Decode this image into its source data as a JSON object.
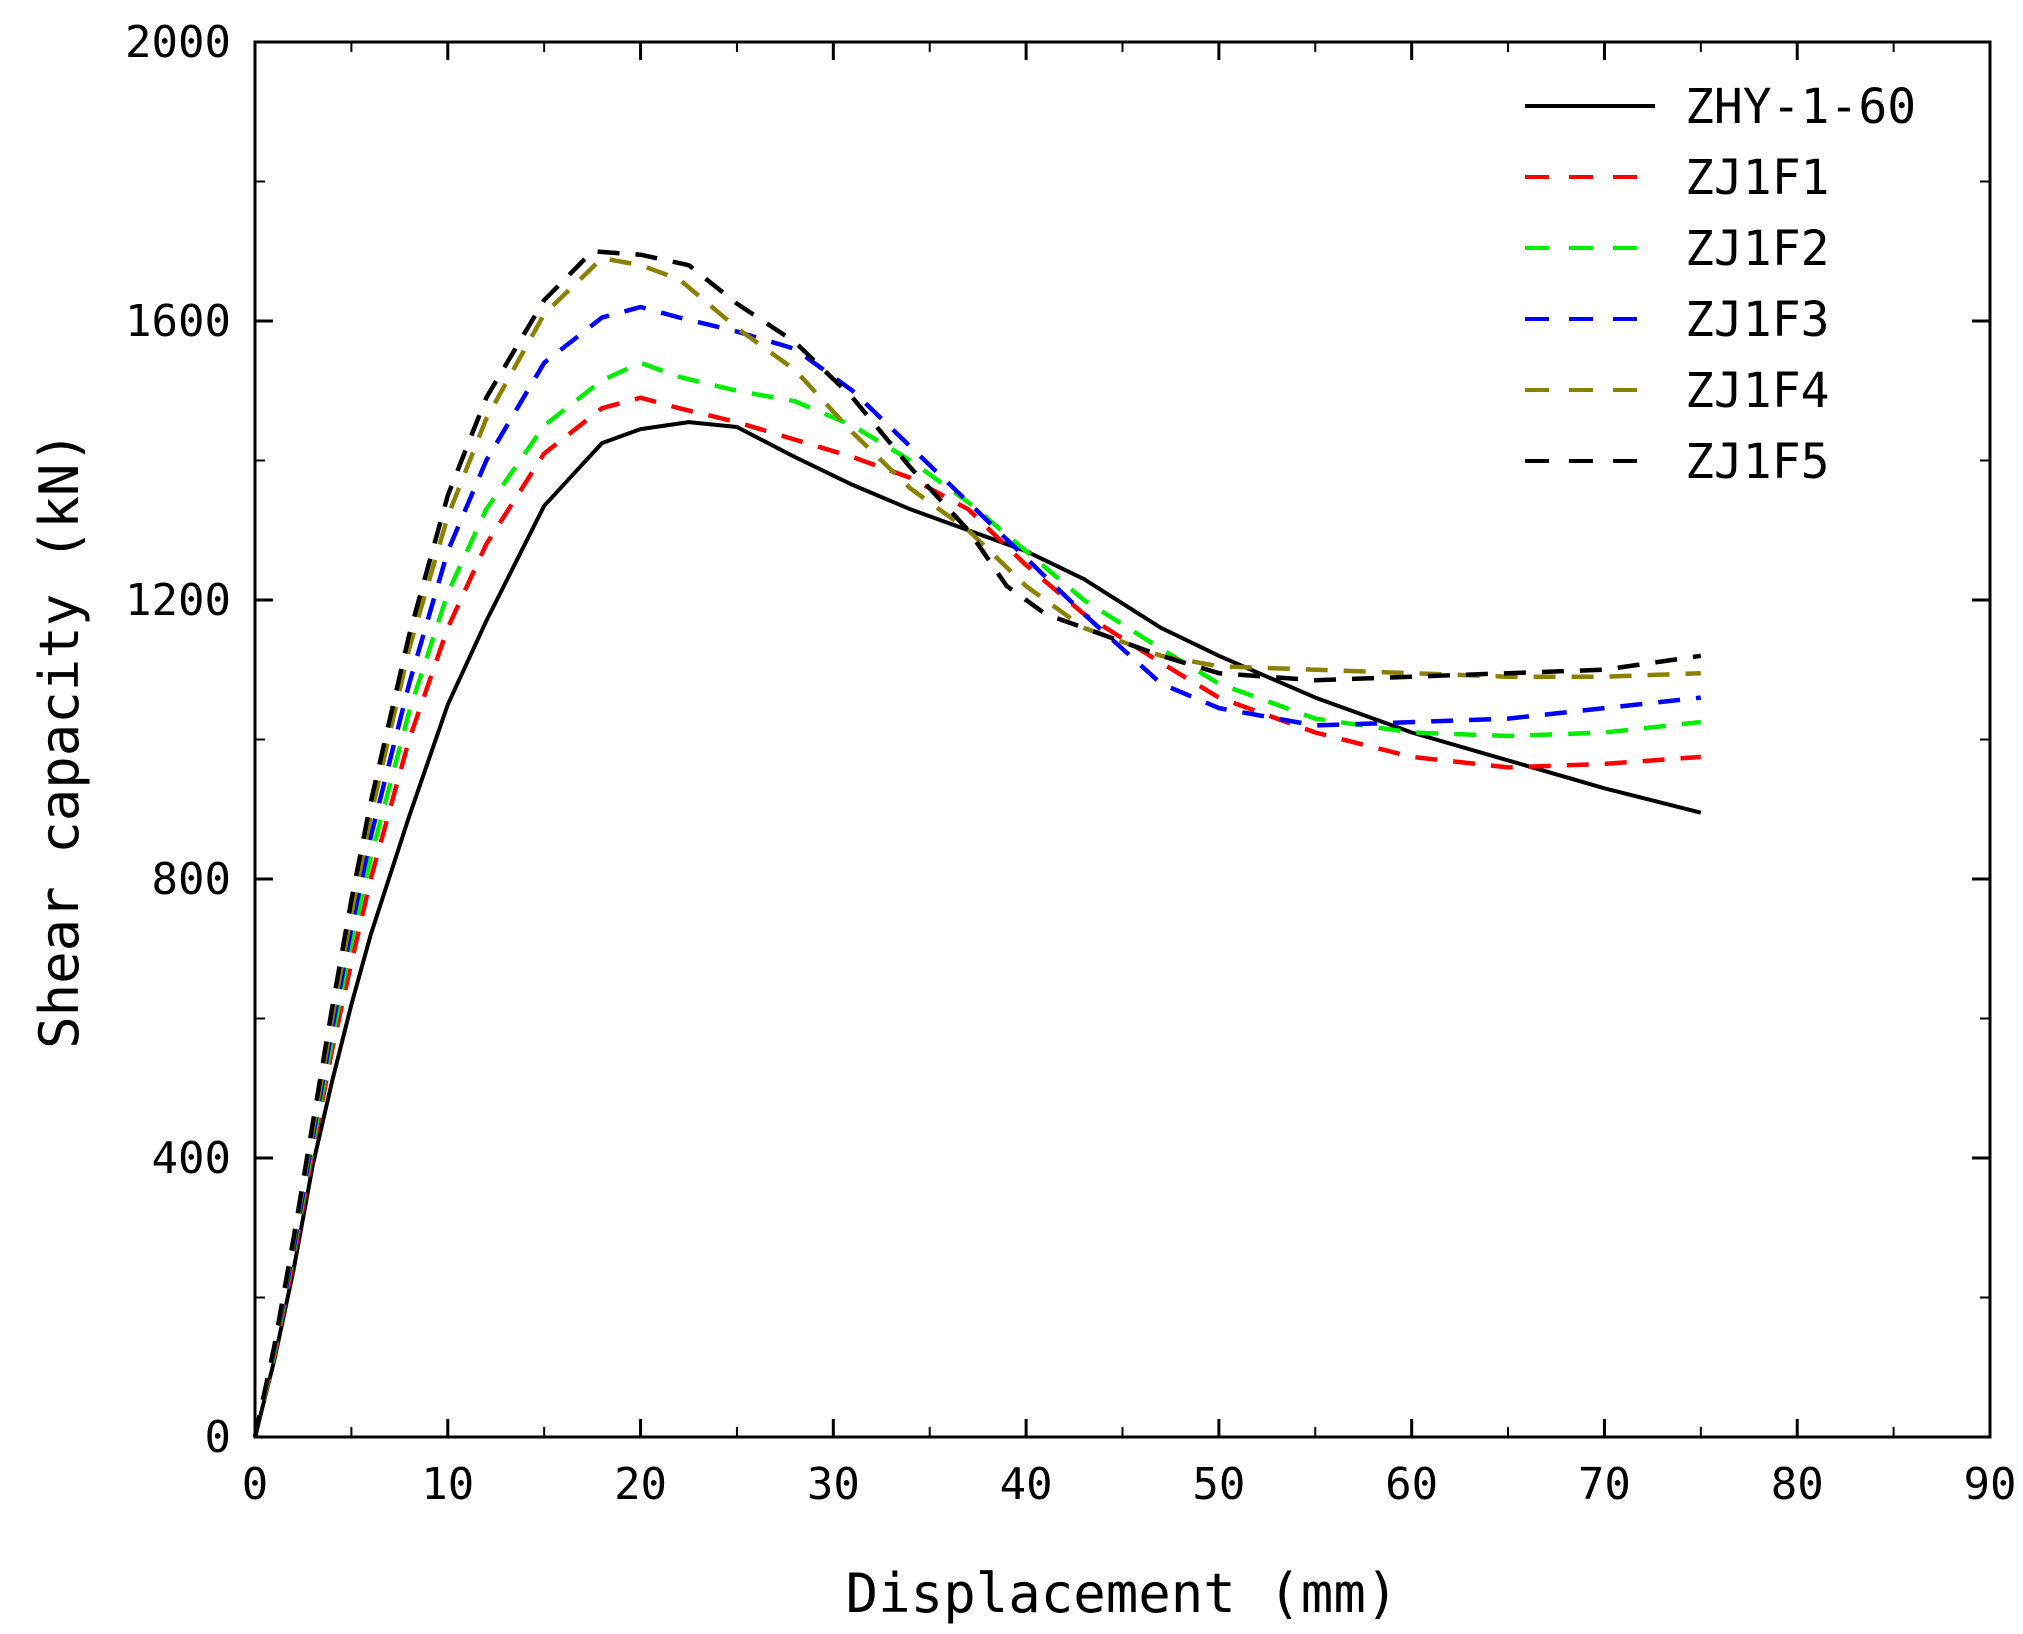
{
  "chart_data": {
    "type": "line",
    "title": "",
    "xlabel": "Displacement (mm)",
    "ylabel": "Shear capacity (kN)",
    "xlim": [
      0,
      90
    ],
    "ylim": [
      0,
      2000
    ],
    "xticks": [
      0,
      10,
      20,
      30,
      40,
      50,
      60,
      70,
      80,
      90
    ],
    "yticks": [
      0,
      400,
      800,
      1200,
      1600,
      2000
    ],
    "grid": false,
    "legend_position": "top-right",
    "series": [
      {
        "name": "ZHY-1-60",
        "color": "#000000",
        "style": "solid",
        "x": [
          0,
          1,
          2,
          3,
          4,
          5,
          6,
          8,
          10,
          12,
          15,
          18,
          20,
          22.5,
          25,
          28,
          31,
          34,
          37,
          40,
          43,
          47,
          50,
          55,
          60,
          65,
          70,
          75
        ],
        "y": [
          0,
          110,
          240,
          390,
          510,
          620,
          720,
          890,
          1050,
          1170,
          1335,
          1425,
          1445,
          1455,
          1448,
          1405,
          1365,
          1330,
          1300,
          1270,
          1230,
          1160,
          1120,
          1060,
          1010,
          970,
          930,
          895
        ]
      },
      {
        "name": "ZJ1F1",
        "color": "#ff0000",
        "style": "dashed",
        "x": [
          0,
          1,
          2,
          3,
          4,
          5,
          6,
          8,
          10,
          12,
          15,
          18,
          20,
          22,
          25,
          28,
          31,
          34,
          37,
          40,
          43,
          47,
          50,
          55,
          60,
          65,
          70,
          75
        ],
        "y": [
          0,
          115,
          255,
          410,
          555,
          680,
          800,
          1000,
          1160,
          1280,
          1410,
          1475,
          1490,
          1475,
          1455,
          1430,
          1405,
          1375,
          1330,
          1250,
          1180,
          1110,
          1060,
          1010,
          975,
          960,
          965,
          975
        ]
      },
      {
        "name": "ZJ1F2",
        "color": "#00ee00",
        "style": "dashed",
        "x": [
          0,
          1,
          2,
          3,
          4,
          5,
          6,
          8,
          10,
          12,
          15,
          18,
          20,
          22,
          25,
          28,
          31,
          34,
          37,
          40,
          43,
          47,
          50,
          55,
          60,
          65,
          70,
          75
        ],
        "y": [
          0,
          120,
          265,
          420,
          570,
          710,
          830,
          1040,
          1210,
          1330,
          1450,
          1515,
          1540,
          1520,
          1500,
          1485,
          1450,
          1400,
          1340,
          1270,
          1200,
          1130,
          1080,
          1030,
          1010,
          1005,
          1010,
          1025
        ]
      },
      {
        "name": "ZJ1F3",
        "color": "#0000ff",
        "style": "dashed",
        "x": [
          0,
          1,
          2,
          3,
          4,
          5,
          6,
          8,
          10,
          12,
          15,
          18,
          20,
          22,
          25,
          28,
          31,
          34,
          37,
          40,
          43,
          47,
          50,
          55,
          60,
          65,
          70,
          75
        ],
        "y": [
          0,
          125,
          270,
          430,
          585,
          730,
          860,
          1080,
          1270,
          1400,
          1540,
          1605,
          1620,
          1605,
          1585,
          1560,
          1500,
          1420,
          1340,
          1260,
          1180,
          1080,
          1045,
          1020,
          1025,
          1030,
          1045,
          1060
        ]
      },
      {
        "name": "ZJ1F4",
        "color": "#8c8000",
        "style": "dashed",
        "x": [
          0,
          1,
          2,
          3,
          4,
          5,
          6,
          8,
          10,
          12,
          15,
          18,
          20,
          22,
          25,
          28,
          31,
          34,
          37,
          40,
          43,
          47,
          50,
          55,
          60,
          65,
          70,
          75
        ],
        "y": [
          0,
          128,
          280,
          440,
          600,
          750,
          890,
          1130,
          1320,
          1460,
          1610,
          1690,
          1680,
          1660,
          1590,
          1530,
          1440,
          1360,
          1300,
          1220,
          1160,
          1120,
          1105,
          1100,
          1095,
          1090,
          1090,
          1095
        ]
      },
      {
        "name": "ZJ1F5",
        "color": "#000000",
        "style": "dashed",
        "x": [
          0,
          1,
          2,
          3,
          4,
          5,
          6,
          8,
          10,
          12,
          15,
          17.5,
          20,
          22.5,
          25,
          28,
          31,
          34,
          37,
          39,
          41,
          43,
          47,
          50,
          55,
          60,
          65,
          70,
          75
        ],
        "y": [
          0,
          130,
          285,
          450,
          615,
          770,
          910,
          1150,
          1350,
          1490,
          1630,
          1700,
          1695,
          1680,
          1625,
          1570,
          1490,
          1390,
          1300,
          1220,
          1180,
          1160,
          1120,
          1095,
          1085,
          1090,
          1095,
          1100,
          1120
        ]
      }
    ]
  }
}
